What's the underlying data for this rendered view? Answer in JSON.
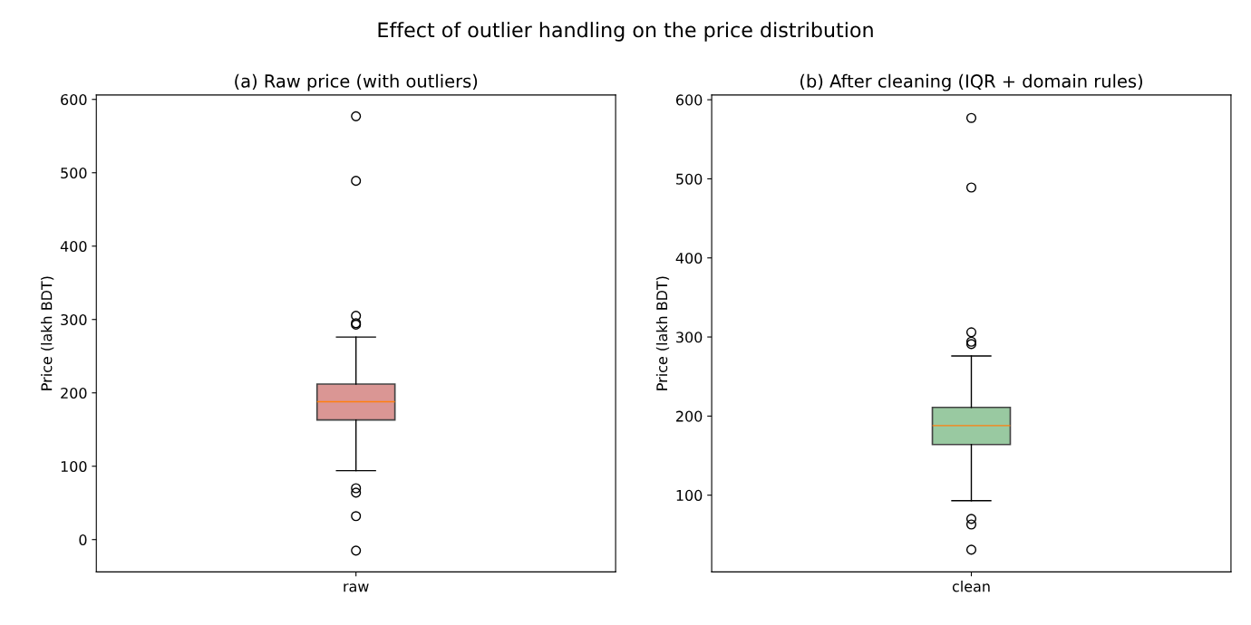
{
  "chart_data": [
    {
      "type": "box",
      "title": "(a) Raw price (with outliers)",
      "ylabel": "Price (lakh BDT)",
      "annotations": [
        "Effect of outlier handling on the price distribution"
      ],
      "categories": [
        "raw"
      ],
      "colors": [
        "#da9694"
      ],
      "boxes": [
        {
          "low": 94,
          "q1": 163,
          "median": 188,
          "q3": 212,
          "high": 276,
          "outliers": [
            577,
            489,
            305,
            295,
            293,
            70,
            64,
            32,
            -15
          ]
        }
      ],
      "ylim": [
        -44,
        606
      ],
      "yticks": [
        0,
        100,
        200,
        300,
        400,
        500,
        600
      ],
      "grid": false
    },
    {
      "type": "box",
      "title": "(b) After cleaning (IQR + domain rules)",
      "ylabel": "Price (lakh BDT)",
      "categories": [
        "clean"
      ],
      "colors": [
        "#99c9a1"
      ],
      "boxes": [
        {
          "low": 93,
          "q1": 164,
          "median": 188,
          "q3": 211,
          "high": 276,
          "outliers": [
            577,
            489,
            306,
            294,
            291,
            70,
            63,
            31
          ]
        }
      ],
      "ylim": [
        3,
        606
      ],
      "yticks": [
        100,
        200,
        300,
        400,
        500,
        600
      ],
      "grid": false
    }
  ]
}
